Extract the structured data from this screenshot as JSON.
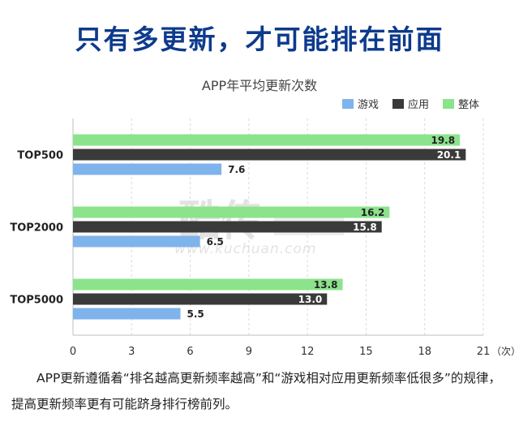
{
  "headline": "只有多更新，才可能排在前面",
  "caption": "APP更新遵循着“排名越高更新频率越高”和“游戏相对应用更新频率低很多”的规律，提高更新频率更有可能跻身排行榜前列。",
  "watermark": {
    "main": "酷传",
    "url": "www.kuchuan.com"
  },
  "colors": {
    "game": "#7fb3ec",
    "app": "#3a3a3a",
    "overall": "#8be38b",
    "headline": "#0d3a8c"
  },
  "chart_data": {
    "type": "bar",
    "orientation": "horizontal",
    "title": "APP年平均更新次数",
    "xlabel": "",
    "ylabel": "",
    "x_unit": "（次）",
    "xlim": [
      0,
      21
    ],
    "xticks": [
      0,
      3,
      6,
      9,
      12,
      15,
      18,
      21
    ],
    "categories": [
      "TOP500",
      "TOP2000",
      "TOP5000"
    ],
    "series": [
      {
        "name": "游戏",
        "key": "game",
        "values": [
          7.6,
          6.5,
          5.5
        ]
      },
      {
        "name": "应用",
        "key": "app",
        "values": [
          20.1,
          15.8,
          13.0
        ]
      },
      {
        "name": "整体",
        "key": "overall",
        "values": [
          19.8,
          16.2,
          13.8
        ]
      }
    ],
    "legend_position": "top-right",
    "grid": "vertical"
  }
}
